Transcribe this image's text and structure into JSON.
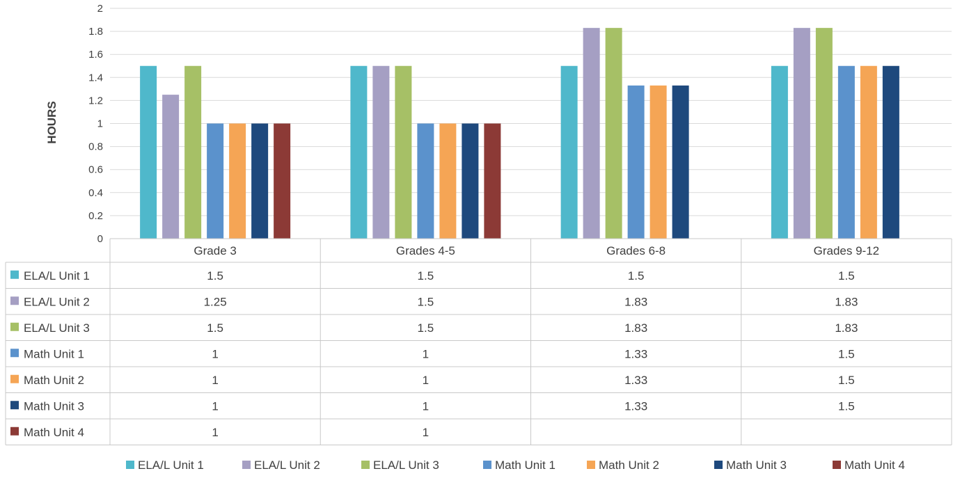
{
  "chart_data": {
    "type": "bar",
    "ylabel": "HOURS",
    "ylim": [
      0,
      2
    ],
    "yticks": [
      "0",
      "0.2",
      "0.4",
      "0.6",
      "0.8",
      "1",
      "1.2",
      "1.4",
      "1.6",
      "1.8",
      "2"
    ],
    "grid": true,
    "legend_position": "bottom",
    "data_table": true,
    "categories": [
      "Grade 3",
      "Grades 4-5",
      "Grades 6-8",
      "Grades 9-12"
    ],
    "series": [
      {
        "name": "ELA/L Unit 1",
        "color": "#4fb8cb",
        "values": [
          1.5,
          1.5,
          1.5,
          1.5
        ],
        "labels": [
          "1.5",
          "1.5",
          "1.5",
          "1.5"
        ]
      },
      {
        "name": "ELA/L Unit 2",
        "color": "#a59fc3",
        "values": [
          1.25,
          1.5,
          1.83,
          1.83
        ],
        "labels": [
          "1.25",
          "1.5",
          "1.83",
          "1.83"
        ]
      },
      {
        "name": "ELA/L Unit 3",
        "color": "#a6c066",
        "values": [
          1.5,
          1.5,
          1.83,
          1.83
        ],
        "labels": [
          "1.5",
          "1.5",
          "1.83",
          "1.83"
        ]
      },
      {
        "name": "Math Unit 1",
        "color": "#5b92cc",
        "values": [
          1,
          1,
          1.33,
          1.5
        ],
        "labels": [
          "1",
          "1",
          "1.33",
          "1.5"
        ]
      },
      {
        "name": "Math Unit 2",
        "color": "#f5a555",
        "values": [
          1,
          1,
          1.33,
          1.5
        ],
        "labels": [
          "1",
          "1",
          "1.33",
          "1.5"
        ]
      },
      {
        "name": "Math Unit 3",
        "color": "#1e497d",
        "values": [
          1,
          1,
          1.33,
          1.5
        ],
        "labels": [
          "1",
          "1",
          "1.33",
          "1.5"
        ]
      },
      {
        "name": "Math Unit 4",
        "color": "#8c3a36",
        "values": [
          1,
          1,
          null,
          null
        ],
        "labels": [
          "1",
          "1",
          "",
          ""
        ]
      }
    ]
  }
}
